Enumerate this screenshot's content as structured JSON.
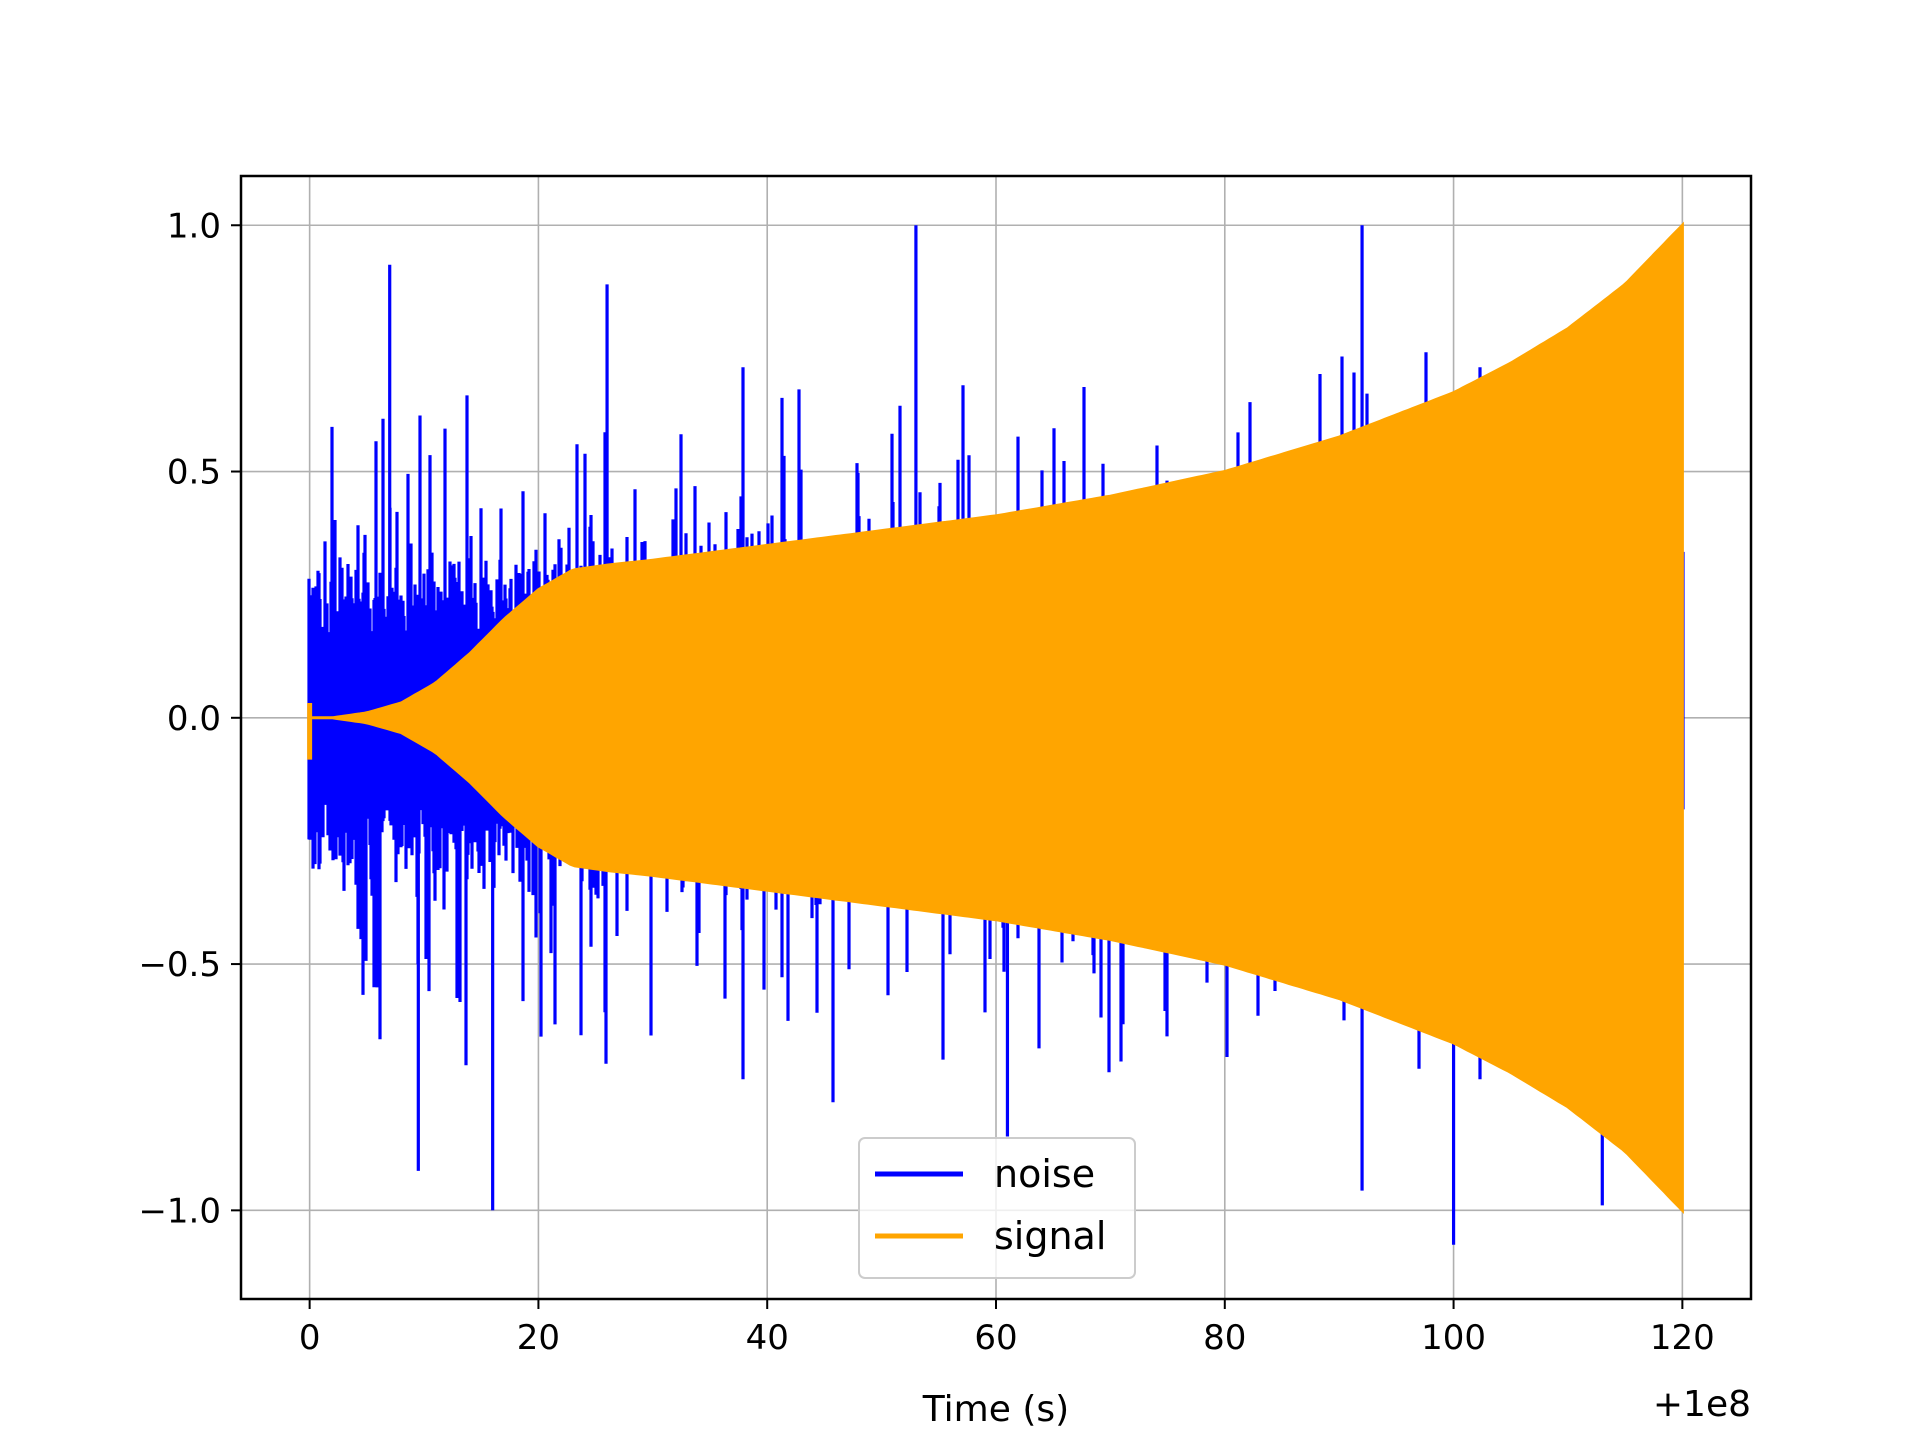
{
  "chart_data": {
    "type": "line",
    "title": "",
    "xlabel": "Time (s)",
    "ylabel": "",
    "x_offset_text": "+1e8",
    "xlim": [
      -6,
      126
    ],
    "ylim": [
      -1.18,
      1.1
    ],
    "x_ticks": [
      0,
      20,
      40,
      60,
      80,
      100,
      120
    ],
    "y_ticks": [
      -1.0,
      -0.5,
      0.0,
      0.5,
      1.0
    ],
    "x_tick_labels": [
      "0",
      "20",
      "40",
      "60",
      "80",
      "100",
      "120"
    ],
    "y_tick_labels": [
      "−1.0",
      "−0.5",
      "0.0",
      "0.5",
      "1.0"
    ],
    "grid": true,
    "legend": {
      "placement": "lower-center"
    },
    "series": [
      {
        "name": "noise",
        "color": "#0000ff",
        "description_shape": "random noise, spikes up to about ±1.0",
        "x_range": [
          0,
          120
        ],
        "y_range": [
          -1.07,
          1.0
        ]
      },
      {
        "name": "signal",
        "color": "#ffa500",
        "description_shape": "oscillating chirp whose envelope grows from 0 at t=0 to about 0.31 near t=25 and 1.0 at t=120",
        "x_range": [
          0,
          120
        ],
        "envelope": {
          "x": [
            0,
            2,
            5,
            8,
            11,
            14,
            17,
            20,
            23,
            26,
            30,
            40,
            50,
            60,
            70,
            80,
            90,
            100,
            105,
            110,
            115,
            120
          ],
          "y": [
            0.0,
            0.0,
            0.01,
            0.03,
            0.07,
            0.13,
            0.2,
            0.26,
            0.3,
            0.31,
            0.32,
            0.35,
            0.38,
            0.41,
            0.45,
            0.5,
            0.57,
            0.66,
            0.72,
            0.79,
            0.88,
            1.0
          ]
        }
      }
    ]
  }
}
